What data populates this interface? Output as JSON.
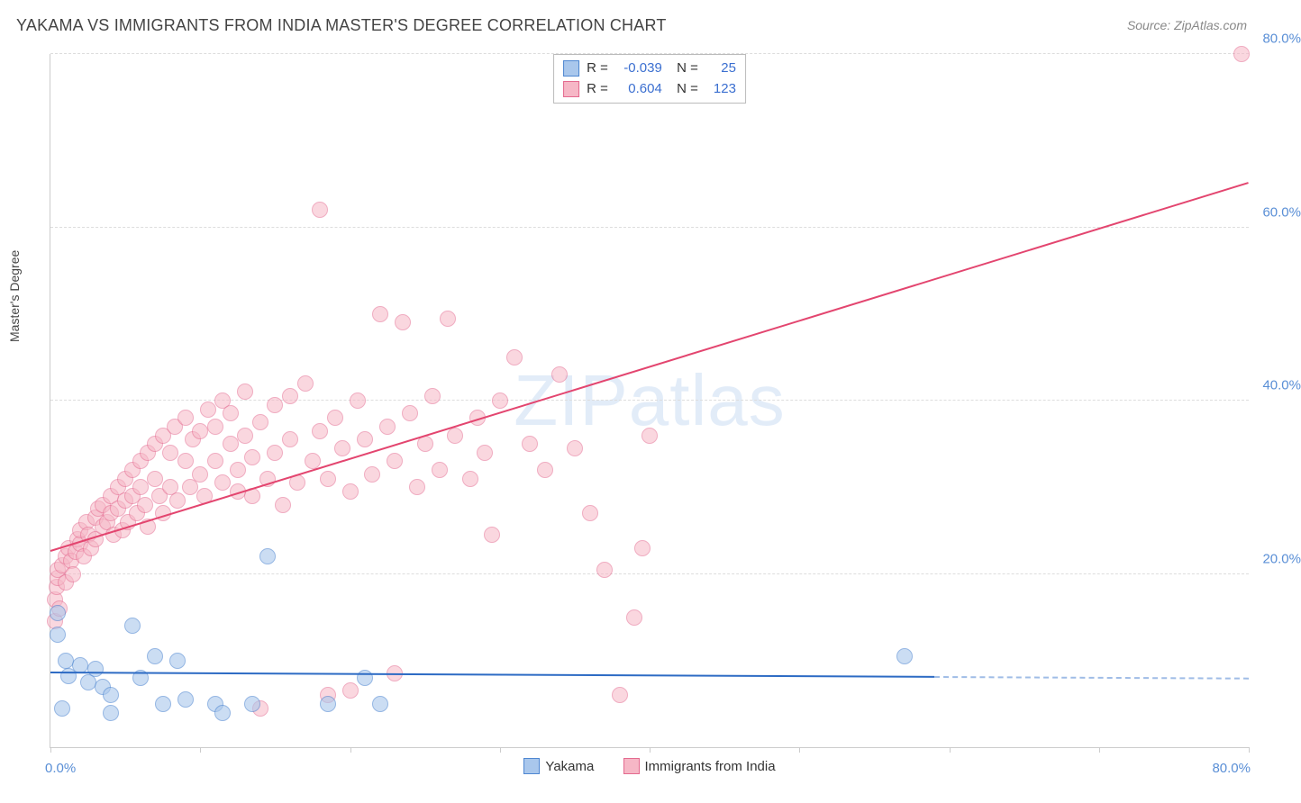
{
  "title": "YAKAMA VS IMMIGRANTS FROM INDIA MASTER'S DEGREE CORRELATION CHART",
  "source_label": "Source: ZipAtlas.com",
  "watermark": "ZIPatlas",
  "yaxis_label": "Master's Degree",
  "chart": {
    "type": "scatter",
    "xlim": [
      0,
      80
    ],
    "ylim": [
      0,
      80
    ],
    "y_ticks": [
      20,
      40,
      60,
      80
    ],
    "y_tick_labels": [
      "20.0%",
      "40.0%",
      "60.0%",
      "80.0%"
    ],
    "x_ticks": [
      0,
      10,
      20,
      30,
      40,
      50,
      60,
      70,
      80
    ],
    "x_tick_labels_shown": {
      "0": "0.0%",
      "80": "80.0%"
    },
    "grid_color": "#dddddd",
    "axis_color": "#cccccc",
    "background_color": "#ffffff",
    "point_radius": 9,
    "series": {
      "yakama": {
        "label": "Yakama",
        "fill": "#a9c7ec",
        "stroke": "#4f87d1",
        "fill_opacity": 0.6,
        "trend_color": "#2d6bc4",
        "trend_dash_color": "#9fbce6",
        "R": "-0.039",
        "N": "25",
        "trend": {
          "x1": 0,
          "y1": 8.5,
          "x2": 59,
          "y2": 8.0,
          "dash_to_x": 80
        },
        "points": [
          [
            0.5,
            15.5
          ],
          [
            0.5,
            13.0
          ],
          [
            1.0,
            10.0
          ],
          [
            1.2,
            8.2
          ],
          [
            0.8,
            4.5
          ],
          [
            2.0,
            9.5
          ],
          [
            2.5,
            7.5
          ],
          [
            3.0,
            9.0
          ],
          [
            3.5,
            7.0
          ],
          [
            4.0,
            6.0
          ],
          [
            4.0,
            4.0
          ],
          [
            5.5,
            14.0
          ],
          [
            6.0,
            8.0
          ],
          [
            7.0,
            10.5
          ],
          [
            7.5,
            5.0
          ],
          [
            8.5,
            10.0
          ],
          [
            9.0,
            5.5
          ],
          [
            11.0,
            5.0
          ],
          [
            11.5,
            4.0
          ],
          [
            13.5,
            5.0
          ],
          [
            14.5,
            22.0
          ],
          [
            18.5,
            5.0
          ],
          [
            22.0,
            5.0
          ],
          [
            21.0,
            8.0
          ],
          [
            57.0,
            10.5
          ]
        ]
      },
      "india": {
        "label": "Immigrants from India",
        "fill": "#f6b7c6",
        "stroke": "#e46a8f",
        "fill_opacity": 0.55,
        "trend_color": "#e3456f",
        "R": "0.604",
        "N": "123",
        "trend": {
          "x1": 0,
          "y1": 22.5,
          "x2": 80,
          "y2": 65.0
        },
        "points": [
          [
            0.3,
            14.5
          ],
          [
            0.3,
            17.0
          ],
          [
            0.4,
            18.5
          ],
          [
            0.5,
            19.5
          ],
          [
            0.5,
            20.5
          ],
          [
            0.6,
            16.0
          ],
          [
            0.8,
            21.0
          ],
          [
            1.0,
            22.0
          ],
          [
            1.0,
            19.0
          ],
          [
            1.2,
            23.0
          ],
          [
            1.4,
            21.5
          ],
          [
            1.5,
            20.0
          ],
          [
            1.7,
            22.5
          ],
          [
            1.8,
            24.0
          ],
          [
            2.0,
            23.5
          ],
          [
            2.0,
            25.0
          ],
          [
            2.2,
            22.0
          ],
          [
            2.4,
            26.0
          ],
          [
            2.5,
            24.5
          ],
          [
            2.7,
            23.0
          ],
          [
            3.0,
            26.5
          ],
          [
            3.0,
            24.0
          ],
          [
            3.2,
            27.5
          ],
          [
            3.5,
            25.5
          ],
          [
            3.5,
            28.0
          ],
          [
            3.8,
            26.0
          ],
          [
            4.0,
            29.0
          ],
          [
            4.0,
            27.0
          ],
          [
            4.2,
            24.5
          ],
          [
            4.5,
            30.0
          ],
          [
            4.5,
            27.5
          ],
          [
            4.8,
            25.0
          ],
          [
            5.0,
            31.0
          ],
          [
            5.0,
            28.5
          ],
          [
            5.2,
            26.0
          ],
          [
            5.5,
            32.0
          ],
          [
            5.5,
            29.0
          ],
          [
            5.8,
            27.0
          ],
          [
            6.0,
            33.0
          ],
          [
            6.0,
            30.0
          ],
          [
            6.3,
            28.0
          ],
          [
            6.5,
            34.0
          ],
          [
            6.5,
            25.5
          ],
          [
            7.0,
            35.0
          ],
          [
            7.0,
            31.0
          ],
          [
            7.3,
            29.0
          ],
          [
            7.5,
            36.0
          ],
          [
            7.5,
            27.0
          ],
          [
            8.0,
            34.0
          ],
          [
            8.0,
            30.0
          ],
          [
            8.3,
            37.0
          ],
          [
            8.5,
            28.5
          ],
          [
            9.0,
            38.0
          ],
          [
            9.0,
            33.0
          ],
          [
            9.3,
            30.0
          ],
          [
            9.5,
            35.5
          ],
          [
            10.0,
            36.5
          ],
          [
            10.0,
            31.5
          ],
          [
            10.3,
            29.0
          ],
          [
            10.5,
            39.0
          ],
          [
            11.0,
            37.0
          ],
          [
            11.0,
            33.0
          ],
          [
            11.5,
            30.5
          ],
          [
            11.5,
            40.0
          ],
          [
            12.0,
            35.0
          ],
          [
            12.0,
            38.5
          ],
          [
            12.5,
            32.0
          ],
          [
            12.5,
            29.5
          ],
          [
            13.0,
            36.0
          ],
          [
            13.0,
            41.0
          ],
          [
            13.5,
            33.5
          ],
          [
            13.5,
            29.0
          ],
          [
            14.0,
            37.5
          ],
          [
            14.5,
            31.0
          ],
          [
            15.0,
            39.5
          ],
          [
            15.0,
            34.0
          ],
          [
            15.5,
            28.0
          ],
          [
            16.0,
            40.5
          ],
          [
            16.0,
            35.5
          ],
          [
            16.5,
            30.5
          ],
          [
            17.0,
            42.0
          ],
          [
            17.5,
            33.0
          ],
          [
            18.0,
            36.5
          ],
          [
            18.0,
            62.0
          ],
          [
            18.5,
            31.0
          ],
          [
            19.0,
            38.0
          ],
          [
            19.5,
            34.5
          ],
          [
            20.0,
            29.5
          ],
          [
            20.5,
            40.0
          ],
          [
            21.0,
            35.5
          ],
          [
            21.5,
            31.5
          ],
          [
            22.0,
            50.0
          ],
          [
            22.5,
            37.0
          ],
          [
            23.0,
            33.0
          ],
          [
            23.5,
            49.0
          ],
          [
            24.0,
            38.5
          ],
          [
            24.5,
            30.0
          ],
          [
            25.0,
            35.0
          ],
          [
            25.5,
            40.5
          ],
          [
            26.0,
            32.0
          ],
          [
            26.5,
            49.5
          ],
          [
            27.0,
            36.0
          ],
          [
            28.0,
            31.0
          ],
          [
            28.5,
            38.0
          ],
          [
            29.0,
            34.0
          ],
          [
            29.5,
            24.5
          ],
          [
            30.0,
            40.0
          ],
          [
            31.0,
            45.0
          ],
          [
            32.0,
            35.0
          ],
          [
            33.0,
            32.0
          ],
          [
            34.0,
            43.0
          ],
          [
            35.0,
            34.5
          ],
          [
            36.0,
            27.0
          ],
          [
            37.0,
            20.5
          ],
          [
            38.0,
            6.0
          ],
          [
            39.0,
            15.0
          ],
          [
            39.5,
            23.0
          ],
          [
            40.0,
            36.0
          ],
          [
            14.0,
            4.5
          ],
          [
            18.5,
            6.0
          ],
          [
            20.0,
            6.5
          ],
          [
            23.0,
            8.5
          ],
          [
            79.5,
            80.0
          ]
        ]
      }
    }
  }
}
